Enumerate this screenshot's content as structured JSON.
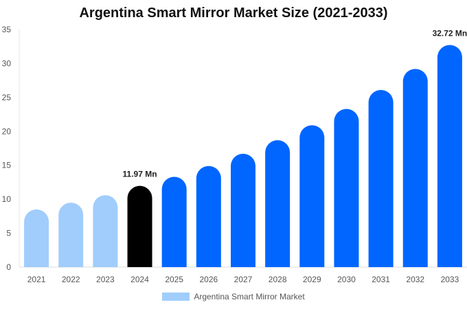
{
  "chart_data": {
    "type": "bar",
    "title": "Argentina Smart Mirror Market Size (2021-2033)",
    "categories": [
      "2021",
      "2022",
      "2023",
      "2024",
      "2025",
      "2026",
      "2027",
      "2028",
      "2029",
      "2030",
      "2031",
      "2032",
      "2033"
    ],
    "series": [
      {
        "name": "Argentina Smart Mirror Market",
        "values": [
          8.5,
          9.5,
          10.6,
          11.97,
          13.3,
          14.9,
          16.7,
          18.7,
          20.9,
          23.3,
          26.1,
          29.2,
          32.72
        ]
      }
    ],
    "ylim": [
      0,
      35
    ],
    "yticks": [
      0,
      5,
      10,
      15,
      20,
      25,
      30,
      35
    ],
    "data_labels": {
      "3": "11.97 Mn",
      "12": "32.72 Mn"
    },
    "colors": {
      "historical": "#a0cdfc",
      "current": "#000000",
      "forecast": "#0066ff"
    },
    "grid": false,
    "legend_position": "bottom"
  }
}
